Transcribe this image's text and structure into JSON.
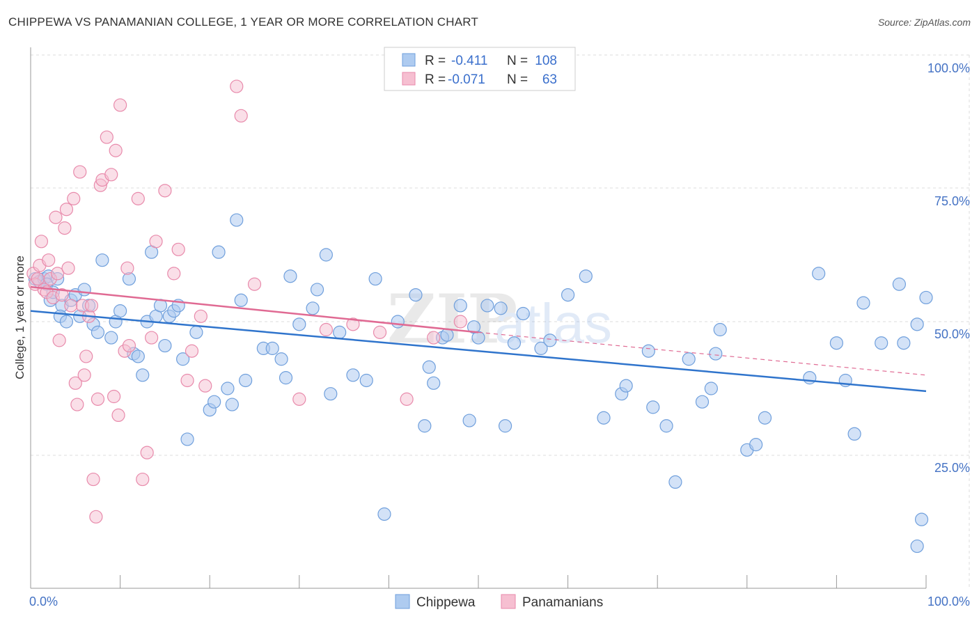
{
  "header": {
    "title": "CHIPPEWA VS PANAMANIAN COLLEGE, 1 YEAR OR MORE CORRELATION CHART",
    "source": "Source: ZipAtlas.com"
  },
  "watermark": {
    "zip": "ZIP",
    "atlas": "atlas"
  },
  "colors": {
    "chippewa_fill": "#aecbf0",
    "chippewa_stroke": "#6f9fdc",
    "chippewa_line": "#2f74cc",
    "panamanian_fill": "#f6bfd1",
    "panamanian_stroke": "#e88aab",
    "panamanian_line": "#e06a93",
    "grid": "#dddddd",
    "axis_text": "#4472c4"
  },
  "legend": {
    "rows": [
      {
        "r_label": "R =",
        "r_value": "-0.411",
        "n_label": "N =",
        "n_value": "108"
      },
      {
        "r_label": "R =",
        "r_value": "-0.071",
        "n_label": "N =",
        "n_value": "63"
      }
    ]
  },
  "bottom_legend": [
    "Chippewa",
    "Panamanians"
  ],
  "chart_data": {
    "type": "scatter",
    "title": "CHIPPEWA VS PANAMANIAN COLLEGE, 1 YEAR OR MORE CORRELATION CHART",
    "xlabel": "",
    "ylabel": "College, 1 year or more",
    "xlim": [
      0,
      100
    ],
    "ylim": [
      0,
      100
    ],
    "x_tick_labels": [
      "0.0%",
      "100.0%"
    ],
    "y_tick_labels": [
      "100.0%",
      "75.0%",
      "50.0%",
      "25.0%"
    ],
    "y_tick_values": [
      100,
      75,
      50,
      25
    ],
    "grid": true,
    "legend_position": "top-center",
    "series": [
      {
        "name": "Chippewa",
        "r": -0.411,
        "n": 108,
        "trend": {
          "x": [
            0,
            100
          ],
          "y": [
            52,
            37
          ]
        },
        "points": [
          [
            0.5,
            58
          ],
          [
            1,
            57.5
          ],
          [
            1.5,
            58
          ],
          [
            2,
            58.5
          ],
          [
            1.8,
            57
          ],
          [
            2.2,
            54
          ],
          [
            2.5,
            55.5
          ],
          [
            3,
            58
          ],
          [
            3.5,
            53
          ],
          [
            3.3,
            51
          ],
          [
            4,
            50
          ],
          [
            4.5,
            54
          ],
          [
            5,
            55
          ],
          [
            5.5,
            51
          ],
          [
            6,
            56
          ],
          [
            6.5,
            53
          ],
          [
            7,
            49.5
          ],
          [
            7.5,
            48
          ],
          [
            8,
            61.5
          ],
          [
            9,
            47
          ],
          [
            9.5,
            50
          ],
          [
            10,
            52
          ],
          [
            11,
            58
          ],
          [
            11.5,
            44
          ],
          [
            12,
            43.5
          ],
          [
            12.5,
            40
          ],
          [
            13,
            50
          ],
          [
            13.5,
            63
          ],
          [
            14,
            51
          ],
          [
            14.5,
            53
          ],
          [
            15,
            45.5
          ],
          [
            15.5,
            51
          ],
          [
            16,
            52
          ],
          [
            16.5,
            53
          ],
          [
            17,
            43
          ],
          [
            17.5,
            28
          ],
          [
            18.5,
            48
          ],
          [
            20,
            33.5
          ],
          [
            20.5,
            35
          ],
          [
            21,
            63
          ],
          [
            22,
            37.5
          ],
          [
            22.5,
            34.5
          ],
          [
            23,
            69
          ],
          [
            23.5,
            54
          ],
          [
            24,
            39
          ],
          [
            26,
            45
          ],
          [
            27,
            45
          ],
          [
            28,
            43
          ],
          [
            28.5,
            39.5
          ],
          [
            29,
            58.5
          ],
          [
            30,
            49.5
          ],
          [
            31.5,
            52.5
          ],
          [
            32,
            56
          ],
          [
            33,
            62.5
          ],
          [
            33.5,
            36.5
          ],
          [
            34.5,
            48
          ],
          [
            36,
            40
          ],
          [
            37.5,
            39
          ],
          [
            38.5,
            58
          ],
          [
            39.5,
            14
          ],
          [
            41,
            50
          ],
          [
            43,
            55
          ],
          [
            44,
            30.5
          ],
          [
            44.5,
            41.5
          ],
          [
            45,
            38.5
          ],
          [
            46,
            47
          ],
          [
            46.5,
            47.5
          ],
          [
            48,
            53
          ],
          [
            49,
            31.5
          ],
          [
            49.5,
            49
          ],
          [
            50,
            47
          ],
          [
            51,
            53
          ],
          [
            52.5,
            52.5
          ],
          [
            53,
            30.5
          ],
          [
            54,
            46
          ],
          [
            55,
            51.5
          ],
          [
            57,
            45
          ],
          [
            58,
            46.5
          ],
          [
            60,
            55
          ],
          [
            62,
            58.5
          ],
          [
            64,
            32
          ],
          [
            66,
            36.5
          ],
          [
            66.5,
            38
          ],
          [
            69,
            44.5
          ],
          [
            69.5,
            34
          ],
          [
            71,
            30.5
          ],
          [
            72,
            20
          ],
          [
            73.5,
            43
          ],
          [
            75,
            35
          ],
          [
            76,
            37.5
          ],
          [
            76.5,
            44
          ],
          [
            77,
            48.5
          ],
          [
            80,
            26
          ],
          [
            81,
            27
          ],
          [
            82,
            32
          ],
          [
            87,
            39.5
          ],
          [
            88,
            59
          ],
          [
            90,
            46
          ],
          [
            91,
            39
          ],
          [
            92,
            29
          ],
          [
            93,
            53.5
          ],
          [
            95,
            46
          ],
          [
            97,
            57
          ],
          [
            97.5,
            46
          ],
          [
            99,
            49.5
          ],
          [
            100,
            54.5
          ],
          [
            99.5,
            13
          ],
          [
            99,
            8
          ]
        ]
      },
      {
        "name": "Panamanians",
        "r": -0.071,
        "n": 63,
        "trend": {
          "x": [
            0,
            50
          ],
          "y": [
            56.5,
            48
          ]
        },
        "trend_dashed": {
          "x": [
            50,
            100
          ],
          "y": [
            48,
            40
          ]
        },
        "points": [
          [
            0.3,
            59
          ],
          [
            0.5,
            57
          ],
          [
            0.8,
            58
          ],
          [
            1,
            60.5
          ],
          [
            1.2,
            65
          ],
          [
            1.5,
            56
          ],
          [
            1.8,
            55.5
          ],
          [
            2,
            61.5
          ],
          [
            2.2,
            58
          ],
          [
            2.5,
            54.5
          ],
          [
            2.8,
            69.5
          ],
          [
            3,
            59
          ],
          [
            3.2,
            46.5
          ],
          [
            3.5,
            55
          ],
          [
            3.8,
            67.5
          ],
          [
            4,
            71
          ],
          [
            4.2,
            60
          ],
          [
            4.5,
            53
          ],
          [
            4.8,
            73
          ],
          [
            5,
            38.5
          ],
          [
            5.2,
            34.5
          ],
          [
            5.5,
            78
          ],
          [
            5.8,
            53
          ],
          [
            6,
            40
          ],
          [
            6.2,
            43.5
          ],
          [
            6.5,
            51
          ],
          [
            6.8,
            53
          ],
          [
            7,
            20.5
          ],
          [
            7.3,
            13.5
          ],
          [
            7.5,
            35.5
          ],
          [
            7.8,
            75.5
          ],
          [
            8,
            76.5
          ],
          [
            8.5,
            84.5
          ],
          [
            9,
            77.5
          ],
          [
            9.3,
            36
          ],
          [
            9.5,
            82
          ],
          [
            9.8,
            32.5
          ],
          [
            10,
            90.5
          ],
          [
            10.5,
            44.5
          ],
          [
            10.8,
            60
          ],
          [
            11,
            45.5
          ],
          [
            12,
            73
          ],
          [
            12.5,
            20.5
          ],
          [
            13,
            25.5
          ],
          [
            13.5,
            47
          ],
          [
            14,
            65
          ],
          [
            15,
            74.5
          ],
          [
            16,
            59
          ],
          [
            16.5,
            63.5
          ],
          [
            17.5,
            39
          ],
          [
            18,
            44.5
          ],
          [
            19,
            51
          ],
          [
            19.5,
            38
          ],
          [
            23,
            94
          ],
          [
            23.5,
            88.5
          ],
          [
            25,
            57
          ],
          [
            30,
            35.5
          ],
          [
            33,
            48.5
          ],
          [
            36,
            49.5
          ],
          [
            39,
            48
          ],
          [
            42,
            35.5
          ],
          [
            45,
            47
          ],
          [
            48,
            50
          ]
        ]
      }
    ]
  }
}
